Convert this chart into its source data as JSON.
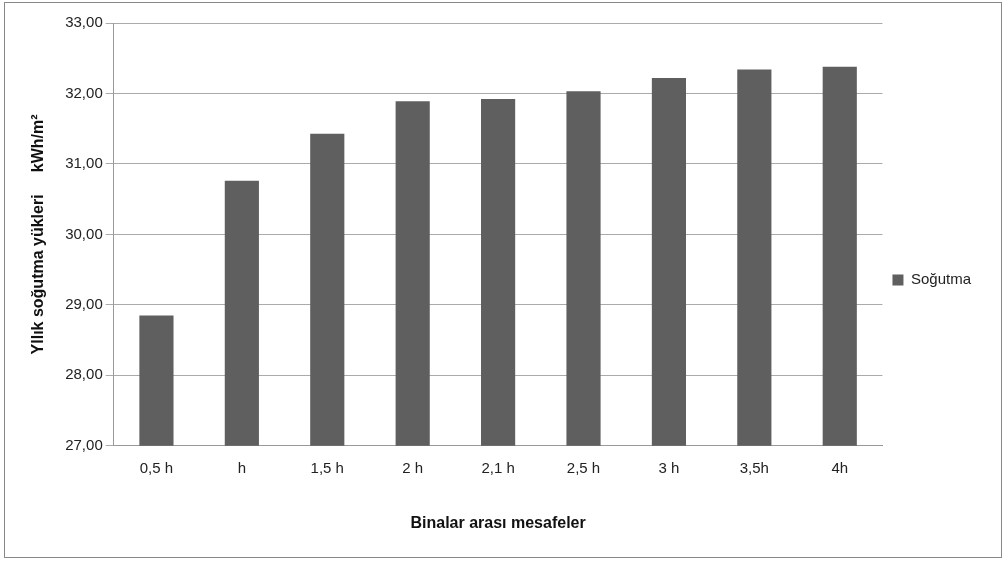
{
  "chart_data": {
    "type": "bar",
    "xlabel": "Binalar arası mesafeler",
    "ylabel": "Yllık soğutma yükleri     kWh/m²",
    "categories": [
      "0,5 h",
      "h",
      "1,5 h",
      "2 h",
      "2,1 h",
      "2,5 h",
      "3 h",
      "3,5h",
      "4h"
    ],
    "series": [
      {
        "name": "Soğutma",
        "color": "#5f5f5f",
        "values": [
          28.85,
          30.76,
          31.43,
          31.89,
          31.92,
          32.03,
          32.22,
          32.34,
          32.38
        ]
      }
    ],
    "ylim": [
      27,
      33
    ],
    "yticks": [
      {
        "value": 27,
        "label": "27,00"
      },
      {
        "value": 28,
        "label": "28,00"
      },
      {
        "value": 29,
        "label": "29,00"
      },
      {
        "value": 30,
        "label": "30,00"
      },
      {
        "value": 31,
        "label": "31,00"
      },
      {
        "value": 32,
        "label": "32,00"
      },
      {
        "value": 33,
        "label": "33,00"
      }
    ],
    "grid": "y",
    "legend": "right"
  }
}
